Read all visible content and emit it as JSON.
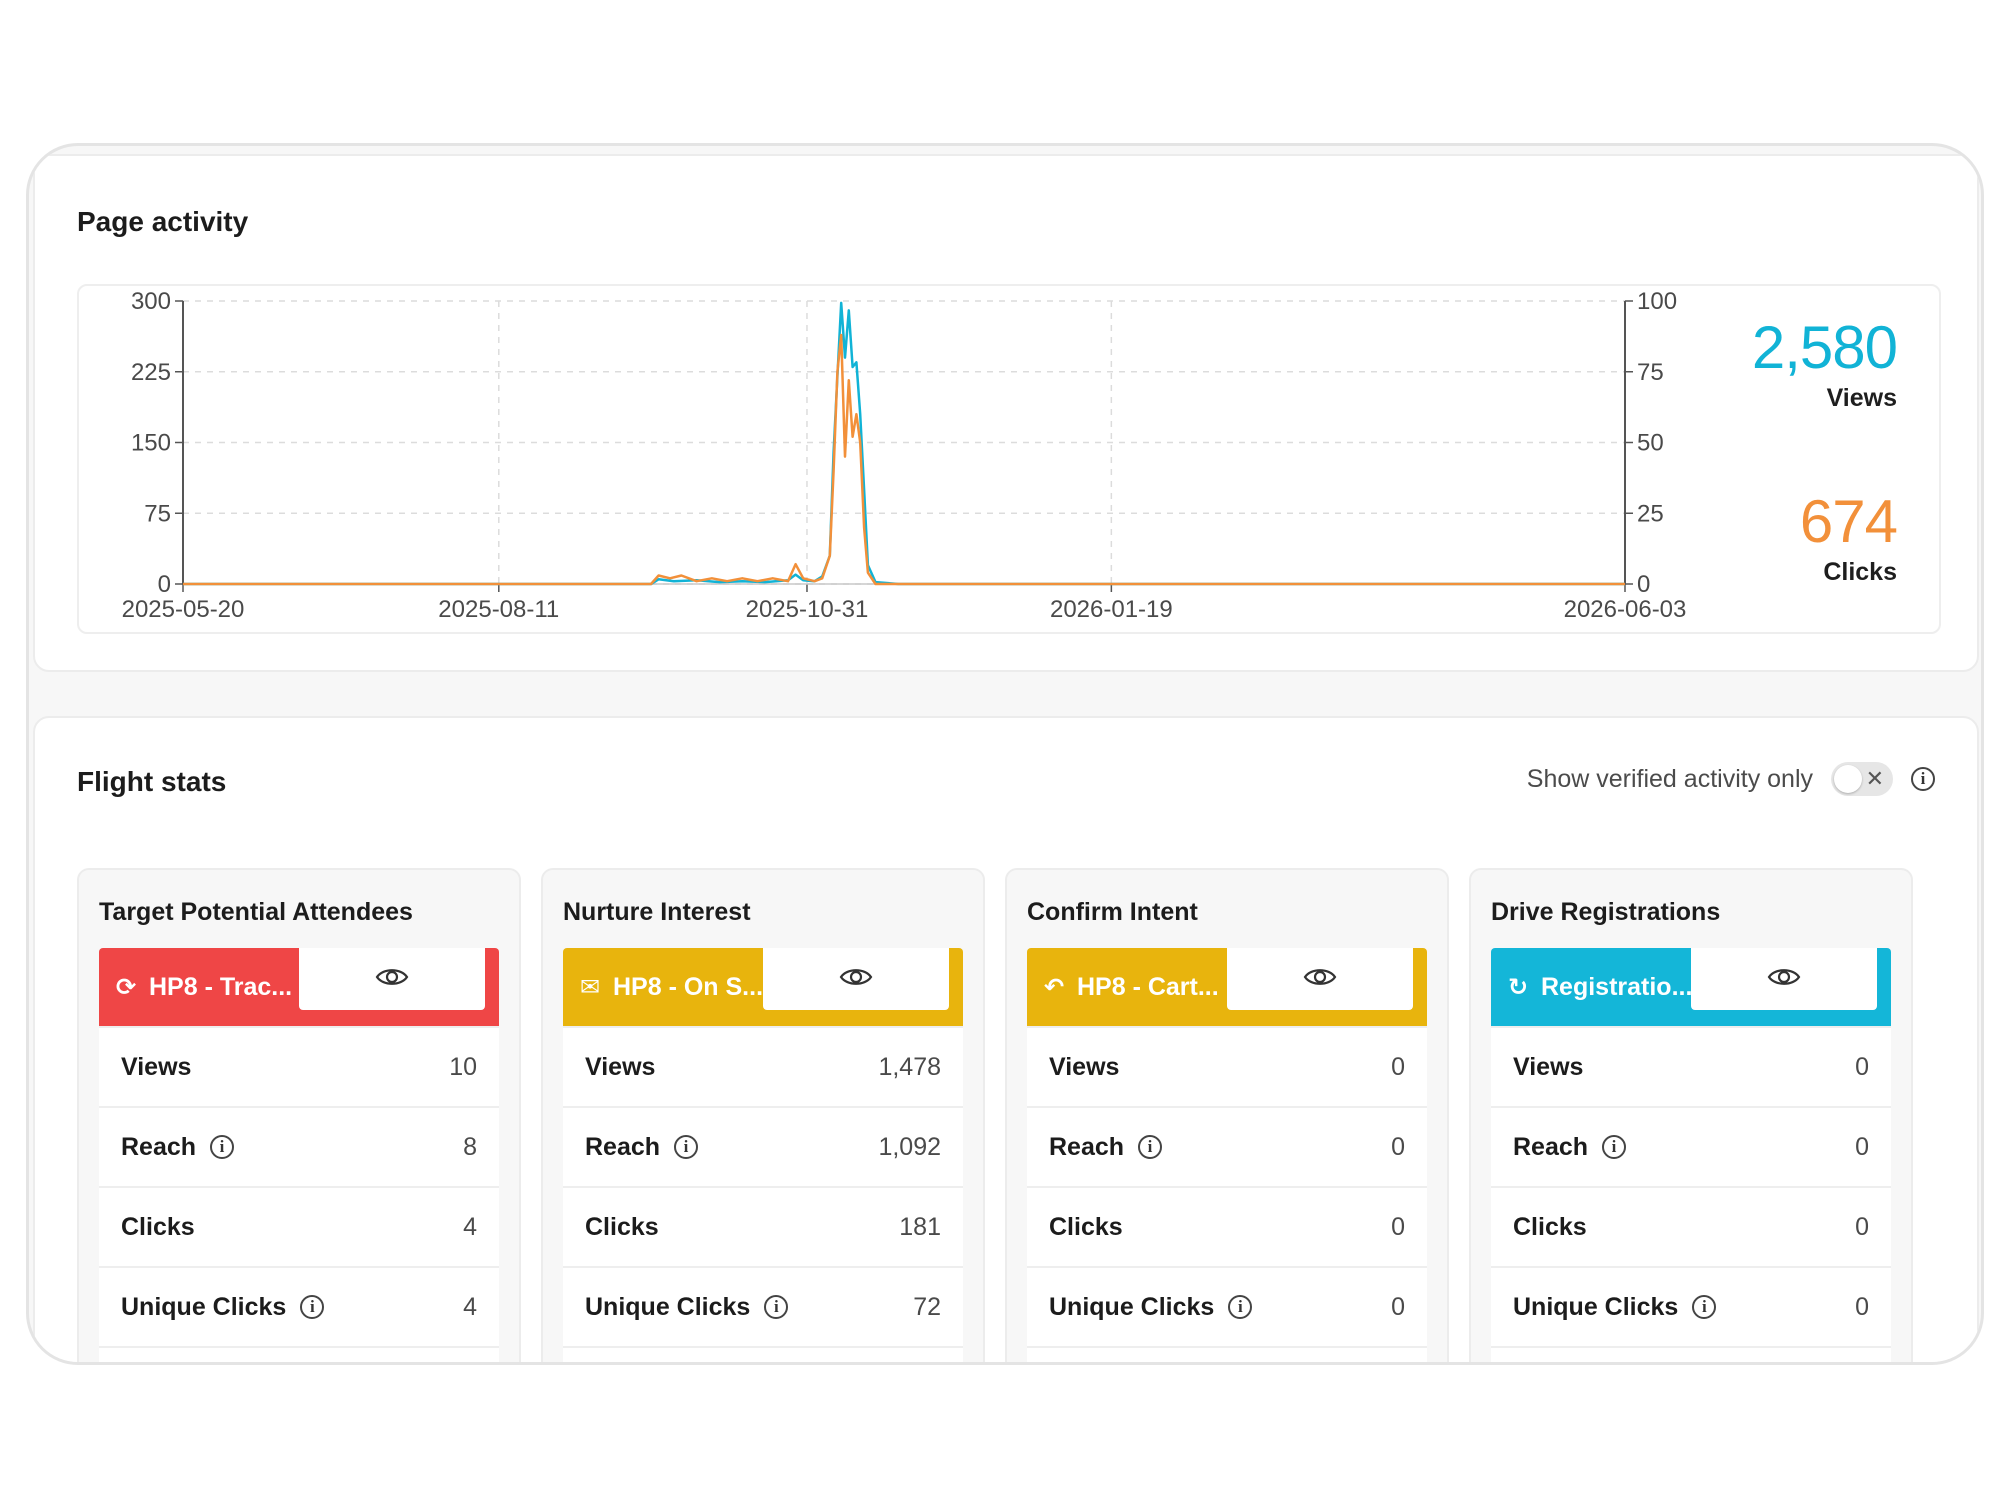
{
  "colors": {
    "views": "#11b3d6",
    "clicks": "#f2903a",
    "red": "#ef4646",
    "yellow": "#e8b40d",
    "cyan": "#14b6d8"
  },
  "page_activity": {
    "title": "Page activity",
    "views_value": "2,580",
    "views_label": "Views",
    "clicks_value": "674",
    "clicks_label": "Clicks"
  },
  "chart_data": {
    "type": "line",
    "x_ticks": [
      "2025-05-20",
      "2025-08-11",
      "2025-10-31",
      "2026-01-19",
      "2026-06-03"
    ],
    "y_left_ticks": [
      "0",
      "75",
      "150",
      "225",
      "300"
    ],
    "y_right_ticks": [
      "0",
      "25",
      "50",
      "75",
      "100"
    ],
    "ylim_left": [
      0,
      300
    ],
    "ylim_right": [
      0,
      100
    ],
    "grid": true,
    "series": [
      {
        "name": "Views",
        "axis": "left",
        "color": "#11b3d6",
        "points": [
          [
            "2025-05-20",
            0
          ],
          [
            "2025-09-20",
            0
          ],
          [
            "2025-09-22",
            5
          ],
          [
            "2025-09-26",
            3
          ],
          [
            "2025-10-02",
            4
          ],
          [
            "2025-10-08",
            2
          ],
          [
            "2025-10-14",
            3
          ],
          [
            "2025-10-20",
            2
          ],
          [
            "2025-10-26",
            4
          ],
          [
            "2025-10-28",
            10
          ],
          [
            "2025-10-30",
            4
          ],
          [
            "2025-11-02",
            3
          ],
          [
            "2025-11-04",
            8
          ],
          [
            "2025-11-06",
            30
          ],
          [
            "2025-11-07",
            140
          ],
          [
            "2025-11-08",
            220
          ],
          [
            "2025-11-09",
            298
          ],
          [
            "2025-11-10",
            240
          ],
          [
            "2025-11-11",
            290
          ],
          [
            "2025-11-12",
            230
          ],
          [
            "2025-11-13",
            235
          ],
          [
            "2025-11-14",
            180
          ],
          [
            "2025-11-15",
            100
          ],
          [
            "2025-11-16",
            20
          ],
          [
            "2025-11-18",
            2
          ],
          [
            "2025-11-24",
            0
          ],
          [
            "2026-06-03",
            0
          ]
        ]
      },
      {
        "name": "Clicks",
        "axis": "right",
        "color": "#f2903a",
        "points": [
          [
            "2025-05-20",
            0
          ],
          [
            "2025-09-20",
            0
          ],
          [
            "2025-09-22",
            3
          ],
          [
            "2025-09-25",
            2
          ],
          [
            "2025-09-28",
            3
          ],
          [
            "2025-10-02",
            1
          ],
          [
            "2025-10-06",
            2
          ],
          [
            "2025-10-10",
            1
          ],
          [
            "2025-10-14",
            2
          ],
          [
            "2025-10-18",
            1
          ],
          [
            "2025-10-22",
            2
          ],
          [
            "2025-10-26",
            1
          ],
          [
            "2025-10-28",
            7
          ],
          [
            "2025-10-30",
            2
          ],
          [
            "2025-11-02",
            1
          ],
          [
            "2025-11-04",
            2
          ],
          [
            "2025-11-06",
            10
          ],
          [
            "2025-11-07",
            40
          ],
          [
            "2025-11-08",
            75
          ],
          [
            "2025-11-09",
            88
          ],
          [
            "2025-11-10",
            45
          ],
          [
            "2025-11-11",
            72
          ],
          [
            "2025-11-12",
            52
          ],
          [
            "2025-11-13",
            60
          ],
          [
            "2025-11-14",
            50
          ],
          [
            "2025-11-15",
            20
          ],
          [
            "2025-11-16",
            4
          ],
          [
            "2025-11-18",
            0
          ],
          [
            "2026-06-03",
            0
          ]
        ]
      }
    ]
  },
  "flight_stats": {
    "title": "Flight stats",
    "toggle_label": "Show verified activity only",
    "toggle_off_glyph": "✕",
    "info_glyph": "i",
    "stages": [
      {
        "title": "Target Potential Attendees",
        "tag": "HP8 - Trac...",
        "tag_icon": "⟳",
        "color": "#ef4646",
        "rows": [
          {
            "label": "Views",
            "value": "10"
          },
          {
            "label": "Reach",
            "value": "8"
          },
          {
            "label": "Clicks",
            "value": "4"
          },
          {
            "label": "Unique Clicks",
            "value": "4"
          }
        ]
      },
      {
        "title": "Nurture Interest",
        "tag": "HP8 - On S...",
        "tag_icon": "✉",
        "color": "#e8b40d",
        "rows": [
          {
            "label": "Views",
            "value": "1,478"
          },
          {
            "label": "Reach",
            "value": "1,092"
          },
          {
            "label": "Clicks",
            "value": "181"
          },
          {
            "label": "Unique Clicks",
            "value": "72"
          }
        ]
      },
      {
        "title": "Confirm Intent",
        "tag": "HP8 - Cart...",
        "tag_icon": "↶",
        "color": "#e8b40d",
        "rows": [
          {
            "label": "Views",
            "value": "0"
          },
          {
            "label": "Reach",
            "value": "0"
          },
          {
            "label": "Clicks",
            "value": "0"
          },
          {
            "label": "Unique Clicks",
            "value": "0"
          }
        ]
      },
      {
        "title": "Drive Registrations",
        "tag": "Registratio...",
        "tag_icon": "↻",
        "color": "#14b6d8",
        "rows": [
          {
            "label": "Views",
            "value": "0"
          },
          {
            "label": "Reach",
            "value": "0"
          },
          {
            "label": "Clicks",
            "value": "0"
          },
          {
            "label": "Unique Clicks",
            "value": "0"
          }
        ]
      }
    ]
  }
}
